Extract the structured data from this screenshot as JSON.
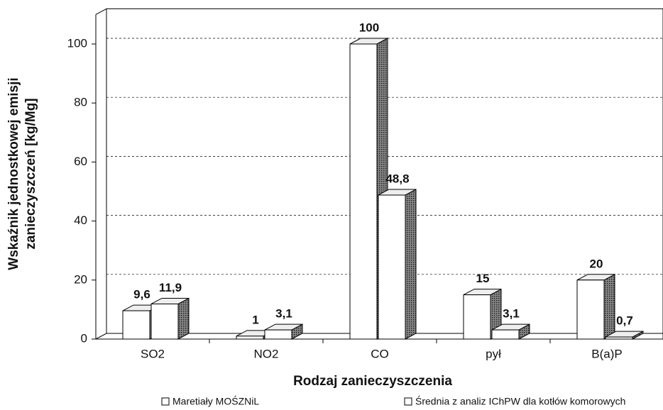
{
  "chart_data": {
    "type": "bar3d",
    "xlabel": "Rodzaj zanieczyszczenia",
    "ylabel": [
      "Wskaźnik jednostkowej emisji",
      "zanieczyszczeń [kg/Mg]"
    ],
    "categories": [
      "SO2",
      "NO2",
      "CO",
      "pył",
      "B(a)P"
    ],
    "series": [
      {
        "name": "Maretiały MOŚZNiL",
        "color": "#ffffff",
        "values": [
          9.6,
          1,
          100,
          15,
          20
        ],
        "value_labels": [
          "9,6",
          "1",
          "100",
          "15",
          "20"
        ]
      },
      {
        "name": "Średnia z analiz IChPW dla kotłów komorowych",
        "color": "#ffffff",
        "values": [
          11.9,
          3.1,
          48.8,
          3.1,
          0.7
        ],
        "value_labels": [
          "11,9",
          "3,1",
          "48,8",
          "3,1",
          "0,7"
        ]
      }
    ],
    "ylim": [
      0,
      110
    ],
    "yticks": [
      0,
      20,
      40,
      60,
      80,
      100
    ],
    "grid": true
  }
}
